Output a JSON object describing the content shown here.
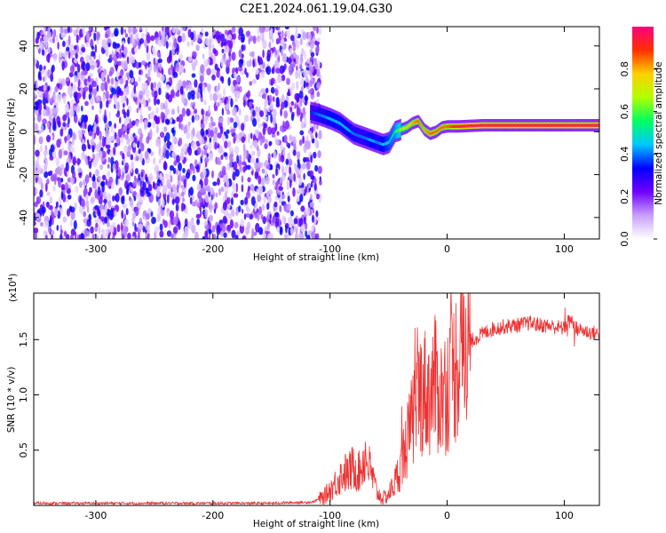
{
  "title": "C2E1.2024.061.19.04.G30",
  "colorbar": {
    "label": "Normalized spectral amplitude",
    "range": [
      0.0,
      1.0
    ],
    "ticks": [
      "0.0",
      "0.2",
      "0.4",
      "0.6",
      "0.8"
    ],
    "tick_values": [
      0.0,
      0.2,
      0.4,
      0.6,
      0.8
    ],
    "colormap": "rainbow-white-to-magenta",
    "stops": [
      "#ffffff",
      "#c8a0ff",
      "#7000ff",
      "#0000ff",
      "#00c8ff",
      "#00ff60",
      "#b0ff00",
      "#ffd000",
      "#ff3000",
      "#ff0080"
    ]
  },
  "chart_data": [
    {
      "type": "heatmap",
      "xlabel": "Height of straight line (km)",
      "ylabel": "Frequency (Hz)",
      "xlim": [
        -353,
        130
      ],
      "ylim": [
        -50,
        49
      ],
      "xticks": [
        "-300",
        "-200",
        "-100",
        "0",
        "100"
      ],
      "xtick_values": [
        -300,
        -200,
        -100,
        0,
        100
      ],
      "yticks": [
        "-40",
        "-20",
        "0",
        "20",
        "40"
      ],
      "ytick_values": [
        -40,
        -20,
        0,
        20,
        40
      ],
      "noise_region": {
        "x": [
          -353,
          -108
        ],
        "amplitude": [
          0.05,
          0.35
        ]
      },
      "signal_track": {
        "x": [
          -117,
          -110,
          -100,
          -92,
          -85,
          -80,
          -75,
          -70,
          -65,
          -60,
          -55,
          -50,
          -45,
          -40,
          -35,
          -30,
          -25,
          -20,
          -15,
          -10,
          -5,
          0,
          10,
          30,
          60,
          90,
          130
        ],
        "freq": [
          9,
          8,
          6,
          4,
          1,
          -1,
          -2,
          -3,
          -4,
          -5,
          -6,
          -5,
          0,
          1,
          2,
          4,
          5,
          1,
          -1,
          0,
          2,
          2.5,
          2.5,
          3,
          3,
          3,
          3
        ],
        "amplitude": [
          0.35,
          0.4,
          0.45,
          0.45,
          0.45,
          0.4,
          0.4,
          0.4,
          0.45,
          0.4,
          0.45,
          0.5,
          0.55,
          0.65,
          0.75,
          0.8,
          0.85,
          0.8,
          0.85,
          0.85,
          0.85,
          0.85,
          0.95,
          0.95,
          0.95,
          0.95,
          0.95
        ]
      }
    },
    {
      "type": "line",
      "xlabel": "Height of straight line (km)",
      "ylabel": "SNR (10 * v/v)",
      "yscale_note": "(x10",
      "yscale_exp": "4",
      "yscale_close": ")",
      "xlim": [
        -353,
        130
      ],
      "ylim": [
        0,
        1.92
      ],
      "xticks": [
        "-300",
        "-200",
        "-100",
        "0",
        "100"
      ],
      "xtick_values": [
        -300,
        -200,
        -100,
        0,
        100
      ],
      "yticks": [
        "0.5",
        "1.0",
        "1.5"
      ],
      "ytick_values": [
        0.5,
        1.0,
        1.5
      ],
      "color": "#ee3333",
      "series": [
        {
          "x": [
            -353,
            -250,
            -150,
            -115,
            -105,
            -97,
            -92,
            -88,
            -85,
            -80,
            -75,
            -70,
            -65,
            -60,
            -55,
            -50,
            -45,
            -40,
            -35,
            -30,
            -25,
            -20,
            -15,
            -10,
            -5,
            0,
            5,
            10,
            15,
            20,
            25,
            30,
            35,
            40,
            50,
            60,
            70,
            80,
            90,
            100,
            105,
            110,
            120,
            130
          ],
          "values": [
            0.02,
            0.02,
            0.02,
            0.03,
            0.08,
            0.18,
            0.25,
            0.3,
            0.28,
            0.35,
            0.3,
            0.45,
            0.3,
            0.12,
            0.06,
            0.1,
            0.2,
            0.35,
            0.55,
            0.75,
            1.0,
            1.05,
            1.0,
            1.1,
            0.98,
            1.08,
            1.2,
            1.35,
            1.42,
            1.48,
            1.52,
            1.55,
            1.58,
            1.6,
            1.62,
            1.63,
            1.65,
            1.63,
            1.62,
            1.6,
            1.7,
            1.6,
            1.57,
            1.55
          ]
        }
      ]
    }
  ]
}
